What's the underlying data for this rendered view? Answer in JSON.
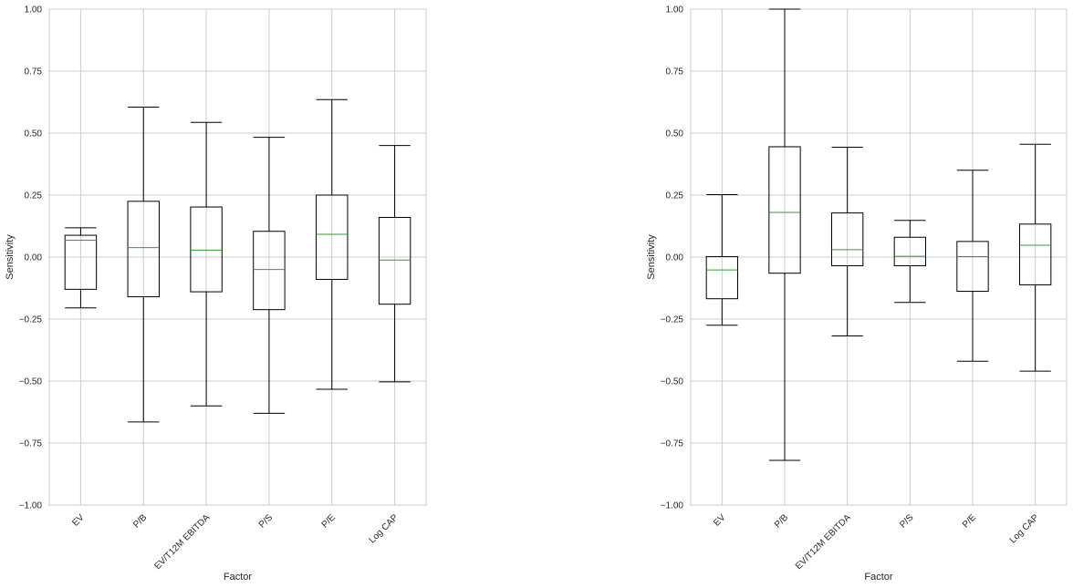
{
  "chart_data": [
    {
      "type": "box",
      "xlabel": "Factor",
      "ylabel": "Sensitivity",
      "ylim": [
        -1.0,
        1.0
      ],
      "yticks": [
        "1.00",
        "0.75",
        "0.50",
        "0.25",
        "0.00",
        "−0.25",
        "−0.50",
        "−0.75",
        "−1.00"
      ],
      "ytick_values": [
        1.0,
        0.75,
        0.5,
        0.25,
        0.0,
        -0.25,
        -0.5,
        -0.75,
        -1.0
      ],
      "categories": [
        "EV",
        "P/B",
        "EV/T12M EBITDA",
        "P/S",
        "P/E",
        "Log CAP"
      ],
      "grid": true,
      "boxes": [
        {
          "whislo": -0.205,
          "q1": -0.13,
          "median": 0.068,
          "q3": 0.088,
          "whishi": 0.118
        },
        {
          "whislo": -0.665,
          "q1": -0.16,
          "median": 0.038,
          "q3": 0.225,
          "whishi": 0.605
        },
        {
          "whislo": -0.6,
          "q1": -0.14,
          "median": 0.028,
          "q3": 0.202,
          "whishi": 0.543
        },
        {
          "whislo": -0.63,
          "q1": -0.212,
          "median": -0.05,
          "q3": 0.104,
          "whishi": 0.483
        },
        {
          "whislo": -0.533,
          "q1": -0.09,
          "median": 0.092,
          "q3": 0.25,
          "whishi": 0.635
        },
        {
          "whislo": -0.503,
          "q1": -0.19,
          "median": -0.012,
          "q3": 0.16,
          "whishi": 0.45
        }
      ]
    },
    {
      "type": "box",
      "xlabel": "Factor",
      "ylabel": "Sensitivity",
      "ylim": [
        -1.0,
        1.0
      ],
      "yticks": [
        "1.00",
        "0.75",
        "0.50",
        "0.25",
        "0.00",
        "−0.25",
        "−0.50",
        "−0.75",
        "−1.00"
      ],
      "ytick_values": [
        1.0,
        0.75,
        0.5,
        0.25,
        0.0,
        -0.25,
        -0.5,
        -0.75,
        -1.0
      ],
      "categories": [
        "EV",
        "P/B",
        "EV/T12M EBITDA",
        "P/S",
        "P/E",
        "Log CAP"
      ],
      "grid": true,
      "boxes": [
        {
          "whislo": -0.275,
          "q1": -0.168,
          "median": -0.052,
          "q3": 0.002,
          "whishi": 0.252
        },
        {
          "whislo": -0.82,
          "q1": -0.065,
          "median": 0.18,
          "q3": 0.445,
          "whishi": 1.0
        },
        {
          "whislo": -0.318,
          "q1": -0.035,
          "median": 0.03,
          "q3": 0.178,
          "whishi": 0.443
        },
        {
          "whislo": -0.183,
          "q1": -0.035,
          "median": 0.003,
          "q3": 0.08,
          "whishi": 0.148
        },
        {
          "whislo": -0.42,
          "q1": -0.138,
          "median": 0.002,
          "q3": 0.063,
          "whishi": 0.35
        },
        {
          "whislo": -0.46,
          "q1": -0.112,
          "median": 0.048,
          "q3": 0.133,
          "whishi": 0.455
        }
      ]
    }
  ]
}
